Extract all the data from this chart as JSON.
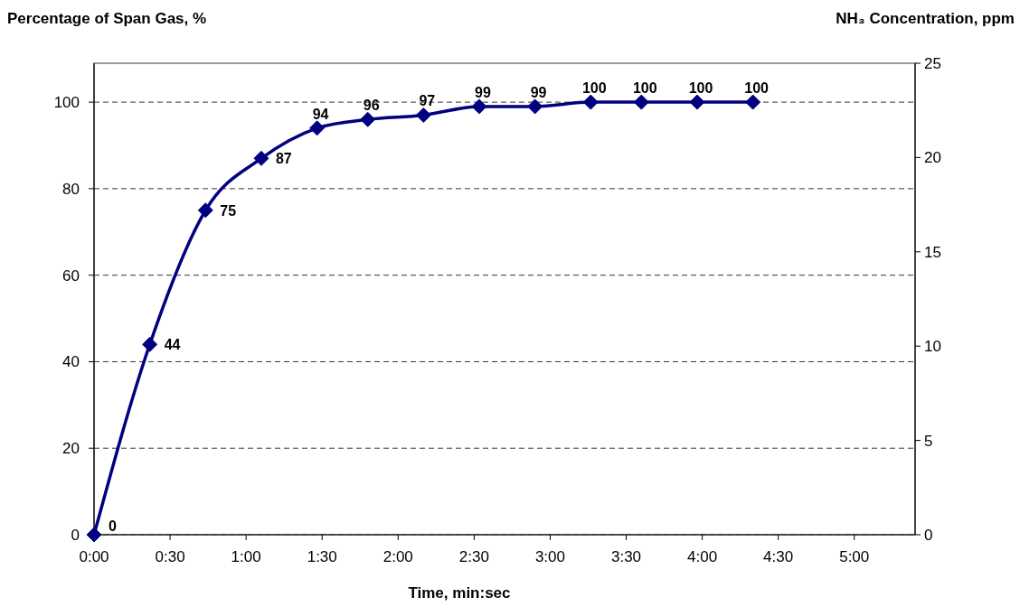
{
  "chart_data": {
    "type": "line",
    "xlabel": "Time, min:sec",
    "ylabel": "Percentage of Span Gas, %",
    "y2label": "NH₃ Concentration, ppm",
    "x": [
      0,
      22,
      44,
      66,
      88,
      108,
      130,
      152,
      174,
      196,
      216,
      238,
      260
    ],
    "series": [
      {
        "color": "#000080",
        "values": [
          0,
          44,
          75,
          87,
          94,
          96,
          97,
          99,
          99,
          100,
          100,
          100,
          100
        ]
      }
    ],
    "xlim": [
      0,
      324
    ],
    "xticks": [
      {
        "value": 0,
        "label": "0:00"
      },
      {
        "value": 30,
        "label": "0:30"
      },
      {
        "value": 60,
        "label": "1:00"
      },
      {
        "value": 90,
        "label": "1:30"
      },
      {
        "value": 120,
        "label": "2:00"
      },
      {
        "value": 150,
        "label": "2:30"
      },
      {
        "value": 180,
        "label": "3:00"
      },
      {
        "value": 210,
        "label": "3:30"
      },
      {
        "value": 240,
        "label": "4:00"
      },
      {
        "value": 270,
        "label": "4:30"
      },
      {
        "value": 300,
        "label": "5:00"
      }
    ],
    "ylim": [
      0,
      109
    ],
    "yticks": [
      0,
      20,
      40,
      60,
      80,
      100
    ],
    "y2lim": [
      0,
      25
    ],
    "y2ticks": [
      0,
      5,
      10,
      15,
      20,
      25
    ],
    "grid": "y",
    "marker": "diamond",
    "line_style": "solid",
    "data_labels": true
  }
}
